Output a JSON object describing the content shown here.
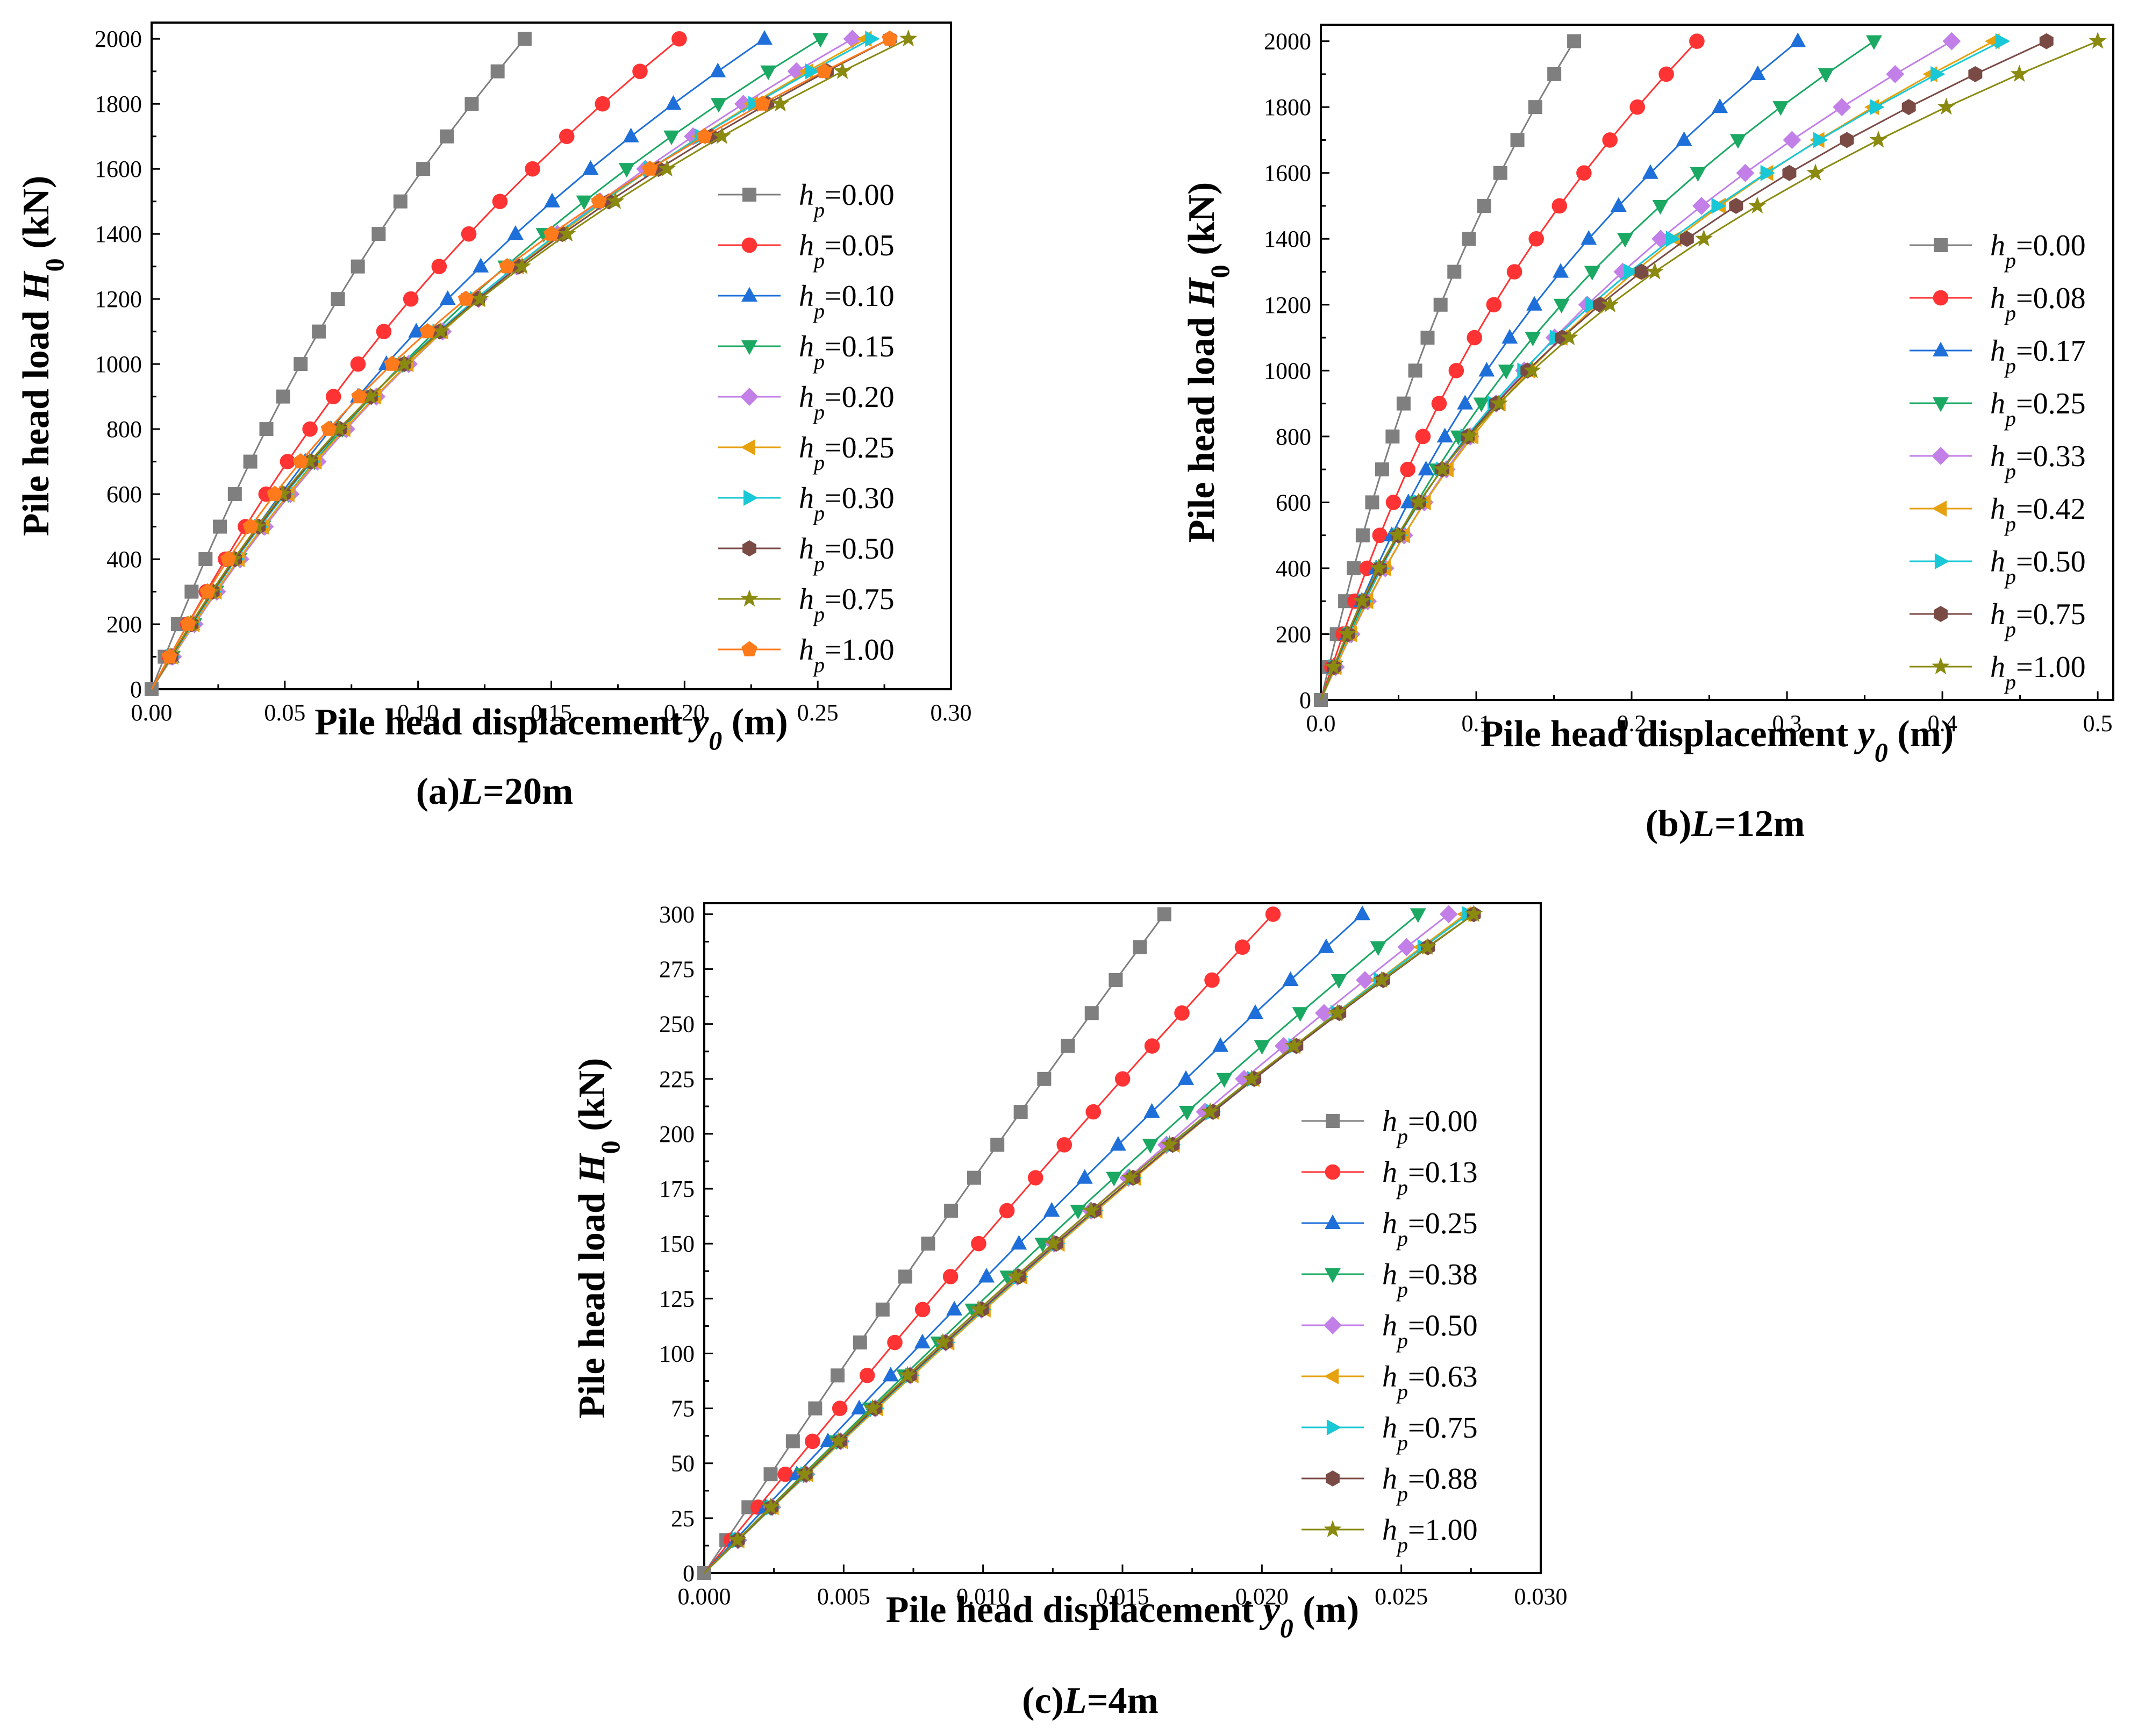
{
  "colors": [
    "#7f7f7f",
    "#ff3333",
    "#1e6fd9",
    "#1aa862",
    "#c27fe8",
    "#e6a10e",
    "#18c8d6",
    "#7a4a45",
    "#8a8a10",
    "#ff7a1a"
  ],
  "chart_data": [
    {
      "type": "line",
      "caption_prefix": "(a)",
      "caption_var": "L",
      "caption_value": "=20m",
      "ylabel_pre": "Pile head load ",
      "ylabel_var": "H",
      "ylabel_sub": "0",
      "ylabel_post": " (kN)",
      "xlabel_pre": "Pile head displacement ",
      "xlabel_var": "y",
      "xlabel_sub": "0",
      "xlabel_post": " (m)",
      "xlim": [
        0,
        0.3
      ],
      "ylim": [
        0,
        2050
      ],
      "xticks": [
        0,
        0.05,
        0.1,
        0.15,
        0.2,
        0.25,
        0.3
      ],
      "xtick_labels": [
        "0.00",
        "0.05",
        "0.10",
        "0.15",
        "0.20",
        "0.25",
        "0.30"
      ],
      "yticks": [
        0,
        200,
        400,
        600,
        800,
        1000,
        1200,
        1400,
        1600,
        1800,
        2000
      ],
      "ytick_labels": [
        "0",
        "200",
        "400",
        "600",
        "800",
        "1000",
        "1200",
        "1400",
        "1600",
        "1800",
        "2000"
      ],
      "legend_var": "h",
      "legend_sub": "p",
      "series": [
        {
          "name": "=0.00",
          "marker": "square",
          "color_index": 0,
          "x_at_2000": 0.14
        },
        {
          "name": "=0.05",
          "marker": "circle",
          "color_index": 1,
          "x_at_2000": 0.198
        },
        {
          "name": "=0.10",
          "marker": "triangle-up",
          "color_index": 2,
          "x_at_2000": 0.23
        },
        {
          "name": "=0.15",
          "marker": "triangle-down",
          "color_index": 3,
          "x_at_2000": 0.251
        },
        {
          "name": "=0.20",
          "marker": "diamond",
          "color_index": 4,
          "x_at_2000": 0.263
        },
        {
          "name": "=0.25",
          "marker": "triangle-left",
          "color_index": 5,
          "x_at_2000": 0.268
        },
        {
          "name": "=0.30",
          "marker": "triangle-right",
          "color_index": 6,
          "x_at_2000": 0.27
        },
        {
          "name": "=0.50",
          "marker": "hexagon",
          "color_index": 7,
          "x_at_2000": 0.277
        },
        {
          "name": "=0.75",
          "marker": "star",
          "color_index": 8,
          "x_at_2000": 0.284
        },
        {
          "name": "=1.00",
          "marker": "pentagon",
          "color_index": 9,
          "x_at_2000": 0.277
        }
      ]
    },
    {
      "type": "line",
      "caption_prefix": "(b)",
      "caption_var": "L",
      "caption_value": "=12m",
      "ylabel_pre": "Pile head load ",
      "ylabel_var": "H",
      "ylabel_sub": "0",
      "ylabel_post": " (kN)",
      "xlabel_pre": "Pile head displacement ",
      "xlabel_var": "y",
      "xlabel_sub": "0",
      "xlabel_post": " (m)",
      "xlim": [
        0,
        0.51
      ],
      "ylim": [
        0,
        2050
      ],
      "xticks": [
        0,
        0.1,
        0.2,
        0.3,
        0.4,
        0.5
      ],
      "xtick_labels": [
        "0.0",
        "0.1",
        "0.2",
        "0.3",
        "0.4",
        "0.5"
      ],
      "yticks": [
        0,
        200,
        400,
        600,
        800,
        1000,
        1200,
        1400,
        1600,
        1800,
        2000
      ],
      "ytick_labels": [
        "0",
        "200",
        "400",
        "600",
        "800",
        "1000",
        "1200",
        "1400",
        "1600",
        "1800",
        "2000"
      ],
      "legend_var": "h",
      "legend_sub": "p",
      "series": [
        {
          "name": "=0.00",
          "marker": "square",
          "color_index": 0,
          "x_at_2000": 0.163
        },
        {
          "name": "=0.08",
          "marker": "circle",
          "color_index": 1,
          "x_at_2000": 0.242
        },
        {
          "name": "=0.17",
          "marker": "triangle-up",
          "color_index": 2,
          "x_at_2000": 0.307
        },
        {
          "name": "=0.25",
          "marker": "triangle-down",
          "color_index": 3,
          "x_at_2000": 0.356
        },
        {
          "name": "=0.33",
          "marker": "diamond",
          "color_index": 4,
          "x_at_2000": 0.406
        },
        {
          "name": "=0.42",
          "marker": "triangle-left",
          "color_index": 5,
          "x_at_2000": 0.433
        },
        {
          "name": "=0.50",
          "marker": "triangle-right",
          "color_index": 6,
          "x_at_2000": 0.438
        },
        {
          "name": "=0.75",
          "marker": "hexagon",
          "color_index": 7,
          "x_at_2000": 0.467
        },
        {
          "name": "=1.00",
          "marker": "star",
          "color_index": 8,
          "x_at_2000": 0.5
        }
      ]
    },
    {
      "type": "line",
      "caption_prefix": "(c)",
      "caption_var": "L",
      "caption_value": "=4m",
      "ylabel_pre": "Pile head load ",
      "ylabel_var": "H",
      "ylabel_sub": "0",
      "ylabel_post": " (kN)",
      "xlabel_pre": "Pile head displacement ",
      "xlabel_var": "y",
      "xlabel_sub": "0",
      "xlabel_post": " (m)",
      "xlim": [
        0,
        0.03
      ],
      "ylim": [
        0,
        305
      ],
      "xticks": [
        0,
        0.005,
        0.01,
        0.015,
        0.02,
        0.025,
        0.03
      ],
      "xtick_labels": [
        "0.000",
        "0.005",
        "0.010",
        "0.015",
        "0.020",
        "0.025",
        "0.030"
      ],
      "yticks": [
        0,
        25,
        50,
        75,
        100,
        125,
        150,
        175,
        200,
        225,
        250,
        275,
        300
      ],
      "ytick_labels": [
        "0",
        "25",
        "50",
        "75",
        "100",
        "125",
        "150",
        "175",
        "200",
        "225",
        "250",
        "275",
        "300"
      ],
      "legend_var": "h",
      "legend_sub": "p",
      "series": [
        {
          "name": "=0.00",
          "marker": "square",
          "color_index": 0,
          "x_at_300": 0.0165
        },
        {
          "name": "=0.13",
          "marker": "circle",
          "color_index": 1,
          "x_at_300": 0.0204
        },
        {
          "name": "=0.25",
          "marker": "triangle-up",
          "color_index": 2,
          "x_at_300": 0.0236
        },
        {
          "name": "=0.38",
          "marker": "triangle-down",
          "color_index": 3,
          "x_at_300": 0.0256
        },
        {
          "name": "=0.50",
          "marker": "diamond",
          "color_index": 4,
          "x_at_300": 0.0267
        },
        {
          "name": "=0.63",
          "marker": "triangle-left",
          "color_index": 5,
          "x_at_300": 0.0273
        },
        {
          "name": "=0.75",
          "marker": "triangle-right",
          "color_index": 6,
          "x_at_300": 0.0274
        },
        {
          "name": "=0.88",
          "marker": "hexagon",
          "color_index": 7,
          "x_at_300": 0.0276
        },
        {
          "name": "=1.00",
          "marker": "star",
          "color_index": 8,
          "x_at_300": 0.0276
        }
      ]
    }
  ]
}
